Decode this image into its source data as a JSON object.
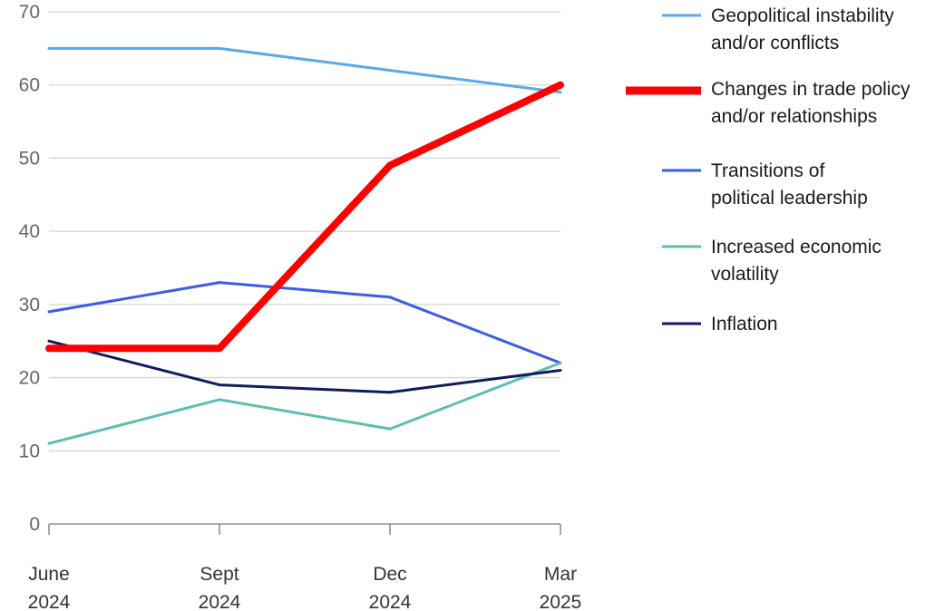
{
  "chart_data": {
    "type": "line",
    "title": "",
    "xlabel": "",
    "ylabel": "",
    "ylim": [
      0,
      70
    ],
    "y_ticks": [
      "0",
      "10",
      "20",
      "30",
      "40",
      "50",
      "60",
      "70"
    ],
    "grid": true,
    "legend_position": "right",
    "categories": [
      [
        "June",
        "2024"
      ],
      [
        "Sept",
        "2024"
      ],
      [
        "Dec",
        "2024"
      ],
      [
        "Mar",
        "2025"
      ]
    ],
    "series": [
      {
        "name": [
          "Geopolitical instability",
          "and/or conflicts"
        ],
        "values": [
          65,
          65,
          62,
          59
        ],
        "color": "#5ba8e8",
        "highlight": false
      },
      {
        "name": [
          "Transitions of",
          "political leadership"
        ],
        "values": [
          29,
          33,
          31,
          22
        ],
        "color": "#3b5ce6",
        "highlight": false
      },
      {
        "name": [
          "Increased economic",
          "volatility"
        ],
        "values": [
          11,
          17,
          13,
          22
        ],
        "color": "#5bbfb0",
        "highlight": false
      },
      {
        "name": [
          "Inflation"
        ],
        "values": [
          25,
          19,
          18,
          21
        ],
        "color": "#101a5e",
        "highlight": false
      },
      {
        "name": [
          "Changes in trade policy",
          "and/or relationships"
        ],
        "values": [
          24,
          24,
          49,
          60
        ],
        "color": "#ff0000",
        "highlight": true
      }
    ],
    "legend_order": [
      0,
      4,
      1,
      2,
      3
    ]
  }
}
